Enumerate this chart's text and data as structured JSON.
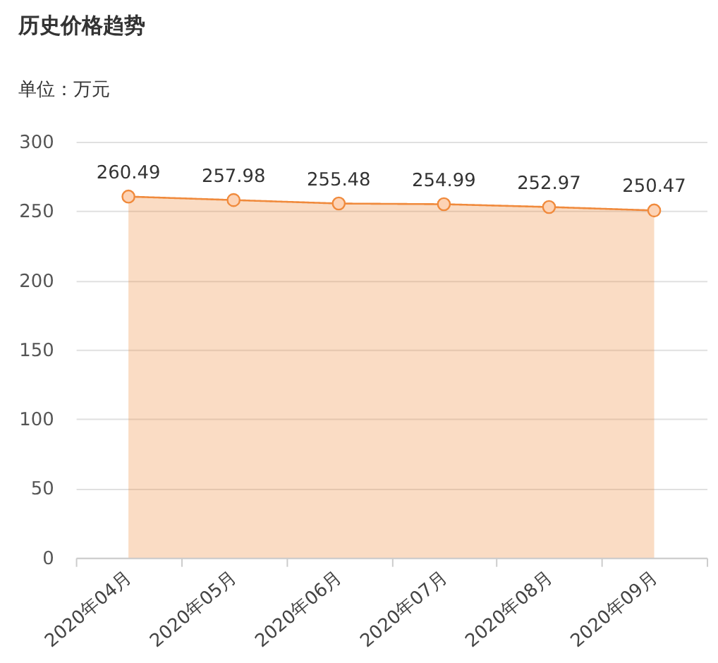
{
  "chart_data": {
    "type": "area",
    "title": "历史价格趋势",
    "subtitle": "单位：万元",
    "categories": [
      "2020年04月",
      "2020年05月",
      "2020年06月",
      "2020年07月",
      "2020年08月",
      "2020年09月"
    ],
    "values": [
      260.49,
      257.98,
      255.48,
      254.99,
      252.97,
      250.47
    ],
    "color": "#f08a3c",
    "ylim": [
      0,
      300
    ],
    "yticks": [
      0,
      50,
      100,
      150,
      200,
      250,
      300
    ],
    "grid": "y",
    "marker": "circle",
    "data_labels": true
  }
}
